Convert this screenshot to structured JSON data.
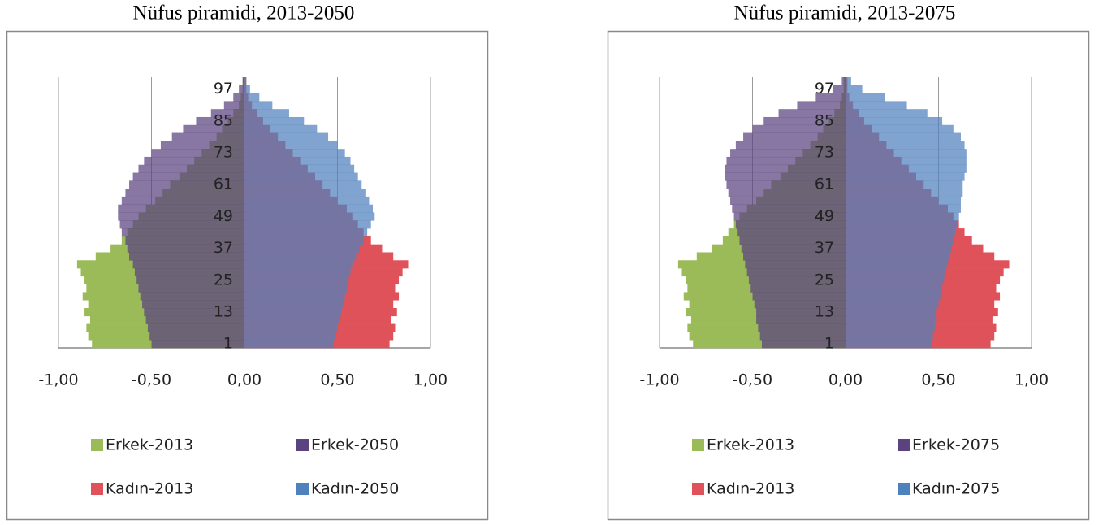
{
  "chart_data": [
    {
      "type": "bar",
      "title": "Nüfus piramidi, 2013-2050",
      "categories": [
        "1",
        null,
        null,
        null,
        "13",
        null,
        null,
        null,
        "25",
        null,
        null,
        null,
        "37",
        null,
        null,
        null,
        "49",
        null,
        null,
        null,
        "61",
        null,
        null,
        null,
        "73",
        null,
        null,
        null,
        "85",
        null,
        null,
        null,
        "97",
        null
      ],
      "xlim": [
        -1,
        1
      ],
      "xticks": [
        {
          "value": -1,
          "label": "-1,00"
        },
        {
          "value": -0.5,
          "label": "-0,50"
        },
        {
          "value": 0,
          "label": "0,00"
        },
        {
          "value": 0.5,
          "label": "0,50"
        },
        {
          "value": 1,
          "label": "1,00"
        }
      ],
      "grid": true,
      "legend": "bottom",
      "series": [
        {
          "name": "Erkek-2013",
          "color": "#9bbb59",
          "values": [
            -0.82,
            -0.84,
            -0.85,
            -0.83,
            -0.86,
            -0.84,
            -0.87,
            -0.85,
            -0.86,
            -0.88,
            -0.9,
            -0.8,
            -0.72,
            -0.66,
            -0.63,
            -0.6,
            -0.57,
            -0.53,
            -0.48,
            -0.44,
            -0.4,
            -0.35,
            -0.31,
            -0.27,
            -0.23,
            -0.19,
            -0.15,
            -0.12,
            -0.09,
            -0.06,
            -0.03,
            -0.02,
            -0.01,
            -0.01
          ]
        },
        {
          "name": "Erkek-2050",
          "color": "#5a437f",
          "values": [
            -0.5,
            -0.51,
            -0.52,
            -0.53,
            -0.54,
            -0.55,
            -0.56,
            -0.57,
            -0.58,
            -0.59,
            -0.6,
            -0.62,
            -0.63,
            -0.64,
            -0.66,
            -0.67,
            -0.68,
            -0.68,
            -0.66,
            -0.64,
            -0.62,
            -0.6,
            -0.57,
            -0.54,
            -0.5,
            -0.45,
            -0.39,
            -0.33,
            -0.26,
            -0.18,
            -0.11,
            -0.06,
            -0.03,
            -0.01
          ]
        },
        {
          "name": "Kadın-2013",
          "color": "#e0525a",
          "values": [
            0.78,
            0.8,
            0.81,
            0.79,
            0.82,
            0.8,
            0.83,
            0.81,
            0.83,
            0.85,
            0.88,
            0.8,
            0.74,
            0.68,
            0.64,
            0.61,
            0.58,
            0.55,
            0.5,
            0.46,
            0.42,
            0.38,
            0.34,
            0.3,
            0.26,
            0.22,
            0.18,
            0.14,
            0.1,
            0.07,
            0.04,
            0.02,
            0.01,
            0.01
          ]
        },
        {
          "name": "Kadın-2050",
          "color": "#4f81bd",
          "values": [
            0.48,
            0.49,
            0.5,
            0.51,
            0.52,
            0.53,
            0.54,
            0.55,
            0.56,
            0.57,
            0.58,
            0.6,
            0.62,
            0.64,
            0.66,
            0.68,
            0.7,
            0.69,
            0.67,
            0.65,
            0.63,
            0.61,
            0.59,
            0.57,
            0.54,
            0.5,
            0.45,
            0.39,
            0.32,
            0.24,
            0.15,
            0.08,
            0.03,
            0.01
          ]
        }
      ]
    },
    {
      "type": "bar",
      "title": "Nüfus piramidi, 2013-2075",
      "categories": [
        "1",
        null,
        null,
        null,
        "13",
        null,
        null,
        null,
        "25",
        null,
        null,
        null,
        "37",
        null,
        null,
        null,
        "49",
        null,
        null,
        null,
        "61",
        null,
        null,
        null,
        "73",
        null,
        null,
        null,
        "85",
        null,
        null,
        null,
        "97",
        null
      ],
      "xlim": [
        -1,
        1
      ],
      "xticks": [
        {
          "value": -1,
          "label": "-1,00"
        },
        {
          "value": -0.5,
          "label": "-0,50"
        },
        {
          "value": 0,
          "label": "0,00"
        },
        {
          "value": 0.5,
          "label": "0,50"
        },
        {
          "value": 1,
          "label": "1,00"
        }
      ],
      "grid": true,
      "legend": "bottom",
      "series": [
        {
          "name": "Erkek-2013",
          "color": "#9bbb59",
          "values": [
            -0.82,
            -0.84,
            -0.85,
            -0.83,
            -0.86,
            -0.84,
            -0.87,
            -0.85,
            -0.86,
            -0.88,
            -0.9,
            -0.8,
            -0.72,
            -0.66,
            -0.63,
            -0.6,
            -0.57,
            -0.53,
            -0.48,
            -0.44,
            -0.4,
            -0.35,
            -0.31,
            -0.27,
            -0.23,
            -0.19,
            -0.15,
            -0.12,
            -0.09,
            -0.06,
            -0.03,
            -0.02,
            -0.01,
            -0.01
          ]
        },
        {
          "name": "Erkek-2075",
          "color": "#5a437f",
          "values": [
            -0.45,
            -0.46,
            -0.47,
            -0.48,
            -0.48,
            -0.49,
            -0.5,
            -0.51,
            -0.52,
            -0.53,
            -0.54,
            -0.55,
            -0.56,
            -0.57,
            -0.58,
            -0.59,
            -0.6,
            -0.61,
            -0.62,
            -0.63,
            -0.64,
            -0.65,
            -0.65,
            -0.64,
            -0.62,
            -0.59,
            -0.55,
            -0.5,
            -0.44,
            -0.36,
            -0.26,
            -0.16,
            -0.07,
            -0.02
          ]
        },
        {
          "name": "Kadın-2013",
          "color": "#e0525a",
          "values": [
            0.78,
            0.8,
            0.81,
            0.79,
            0.82,
            0.8,
            0.83,
            0.81,
            0.83,
            0.85,
            0.88,
            0.8,
            0.74,
            0.68,
            0.64,
            0.61,
            0.58,
            0.55,
            0.5,
            0.46,
            0.42,
            0.38,
            0.34,
            0.3,
            0.26,
            0.22,
            0.18,
            0.14,
            0.1,
            0.07,
            0.04,
            0.02,
            0.01,
            0.01
          ]
        },
        {
          "name": "Kadın-2075",
          "color": "#4f81bd",
          "values": [
            0.46,
            0.47,
            0.48,
            0.49,
            0.49,
            0.5,
            0.51,
            0.52,
            0.53,
            0.54,
            0.55,
            0.56,
            0.57,
            0.58,
            0.59,
            0.6,
            0.61,
            0.62,
            0.62,
            0.63,
            0.63,
            0.64,
            0.65,
            0.65,
            0.65,
            0.64,
            0.62,
            0.58,
            0.52,
            0.44,
            0.33,
            0.21,
            0.09,
            0.03
          ]
        }
      ]
    }
  ]
}
